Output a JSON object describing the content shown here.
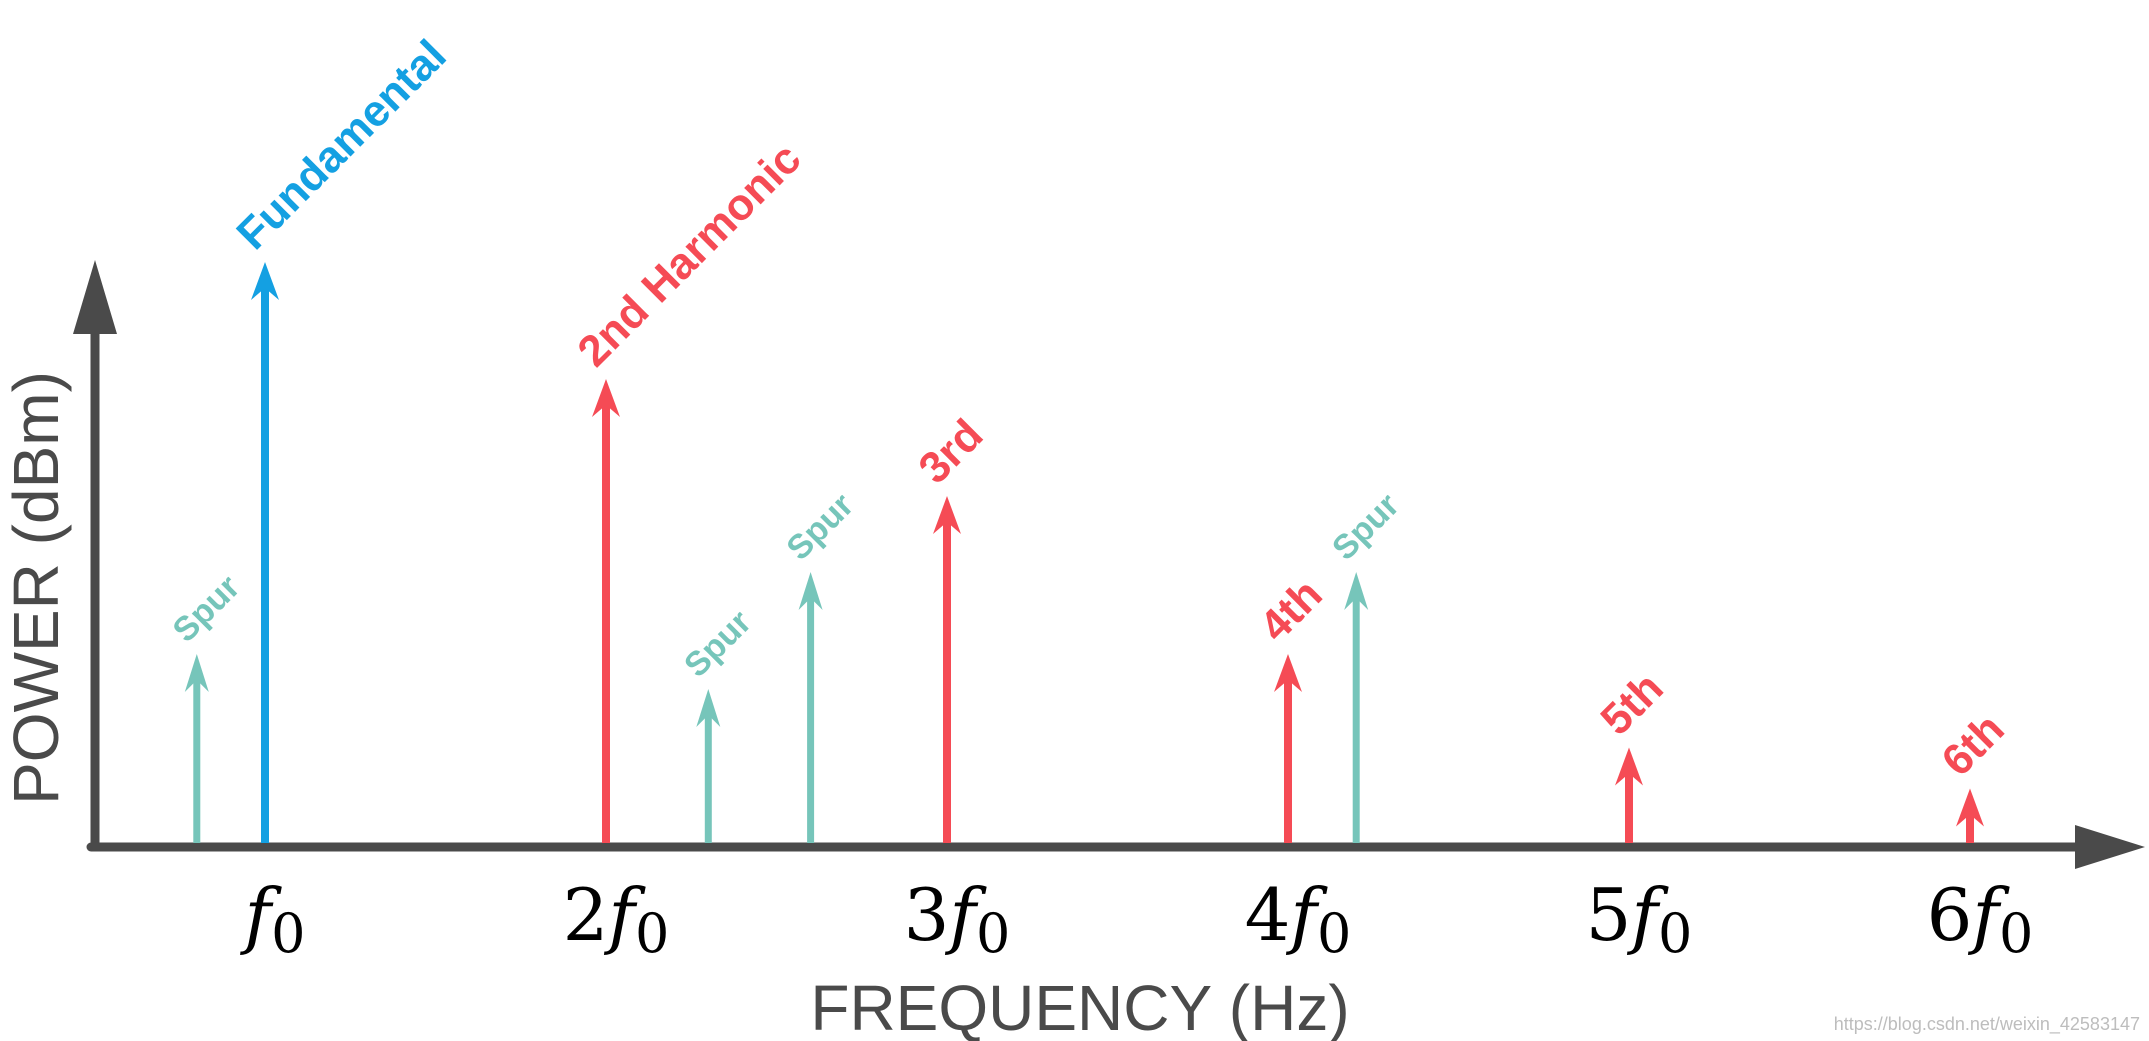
{
  "chart_data": {
    "type": "spectrum",
    "xlabel": "FREQUENCY (Hz)",
    "ylabel": "POWER (dBm)",
    "tick_labels": [
      {
        "x": 1,
        "coef": "",
        "base": "f",
        "sub": "0"
      },
      {
        "x": 2,
        "coef": "2",
        "base": "f",
        "sub": "0"
      },
      {
        "x": 3,
        "coef": "3",
        "base": "f",
        "sub": "0"
      },
      {
        "x": 4,
        "coef": "4",
        "base": "f",
        "sub": "0"
      },
      {
        "x": 5,
        "coef": "5",
        "base": "f",
        "sub": "0"
      },
      {
        "x": 6,
        "coef": "6",
        "base": "f",
        "sub": "0"
      }
    ],
    "lines": [
      {
        "label": "Spur",
        "kind": "spur",
        "x": 0.8,
        "power": 0.33
      },
      {
        "label": "Fundamental",
        "kind": "fundamental",
        "x": 1.0,
        "power": 1.0
      },
      {
        "label": "2nd Harmonic",
        "kind": "harmonic",
        "x": 2.0,
        "power": 0.8
      },
      {
        "label": "Spur",
        "kind": "spur",
        "x": 2.3,
        "power": 0.27
      },
      {
        "label": "Spur",
        "kind": "spur",
        "x": 2.6,
        "power": 0.47
      },
      {
        "label": "3rd",
        "kind": "harmonic",
        "x": 3.0,
        "power": 0.6
      },
      {
        "label": "4th",
        "kind": "harmonic",
        "x": 4.0,
        "power": 0.33
      },
      {
        "label": "Spur",
        "kind": "spur",
        "x": 4.2,
        "power": 0.47
      },
      {
        "label": "5th",
        "kind": "harmonic",
        "x": 5.0,
        "power": 0.17
      },
      {
        "label": "6th",
        "kind": "harmonic",
        "x": 6.0,
        "power": 0.1
      }
    ],
    "colors": {
      "fundamental": "#14a0e2",
      "harmonic": "#f54b55",
      "spur": "#76c5ba",
      "axis": "#4a4a4a"
    }
  },
  "watermark": "https://blog.csdn.net/weixin_42583147"
}
